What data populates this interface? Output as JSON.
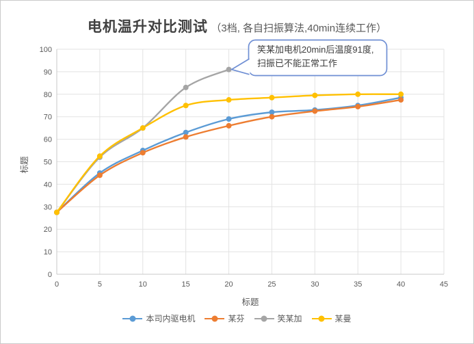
{
  "title": {
    "main": "电机温升对比测试",
    "sub": "（3档, 各自扫振算法,40min连续工作）"
  },
  "chart_data": {
    "type": "line",
    "title": "电机温升对比测试（3档, 各自扫振算法,40min连续工作）",
    "xlabel": "标题",
    "ylabel": "标题",
    "xlim": [
      0,
      45
    ],
    "ylim": [
      0,
      100
    ],
    "xticks": [
      0,
      5,
      10,
      15,
      20,
      25,
      30,
      35,
      40,
      45
    ],
    "yticks": [
      0,
      10,
      20,
      30,
      40,
      50,
      60,
      70,
      80,
      90,
      100
    ],
    "grid": true,
    "legend_position": "bottom",
    "x": [
      0,
      5,
      10,
      15,
      20,
      25,
      30,
      35,
      40
    ],
    "series": [
      {
        "name": "本司内驱电机",
        "color": "#5B9BD5",
        "values": [
          27.5,
          45,
          55,
          63,
          69,
          72,
          73,
          75,
          78.5
        ]
      },
      {
        "name": "某芬",
        "color": "#ED7D31",
        "values": [
          27.5,
          44,
          54,
          61,
          66,
          70,
          72.5,
          74.5,
          77.5
        ]
      },
      {
        "name": "笑某加",
        "color": "#A5A5A5",
        "values": [
          27.5,
          52,
          65,
          83,
          91,
          null,
          null,
          null,
          null
        ]
      },
      {
        "name": "某曼",
        "color": "#FFC000",
        "values": [
          27.5,
          52.5,
          65,
          75,
          77.5,
          78.5,
          79.5,
          80,
          80
        ]
      }
    ],
    "callout": {
      "line1": "笑某加电机20min后温度91度,",
      "line2": "扫振已不能正常工作",
      "target_x": 20,
      "target_y": 91,
      "border_color": "#6f8fd4"
    },
    "colors": {
      "gridline": "#e2e2e2",
      "axis_line": "#c9c9c9",
      "tick_label": "#595959"
    }
  }
}
